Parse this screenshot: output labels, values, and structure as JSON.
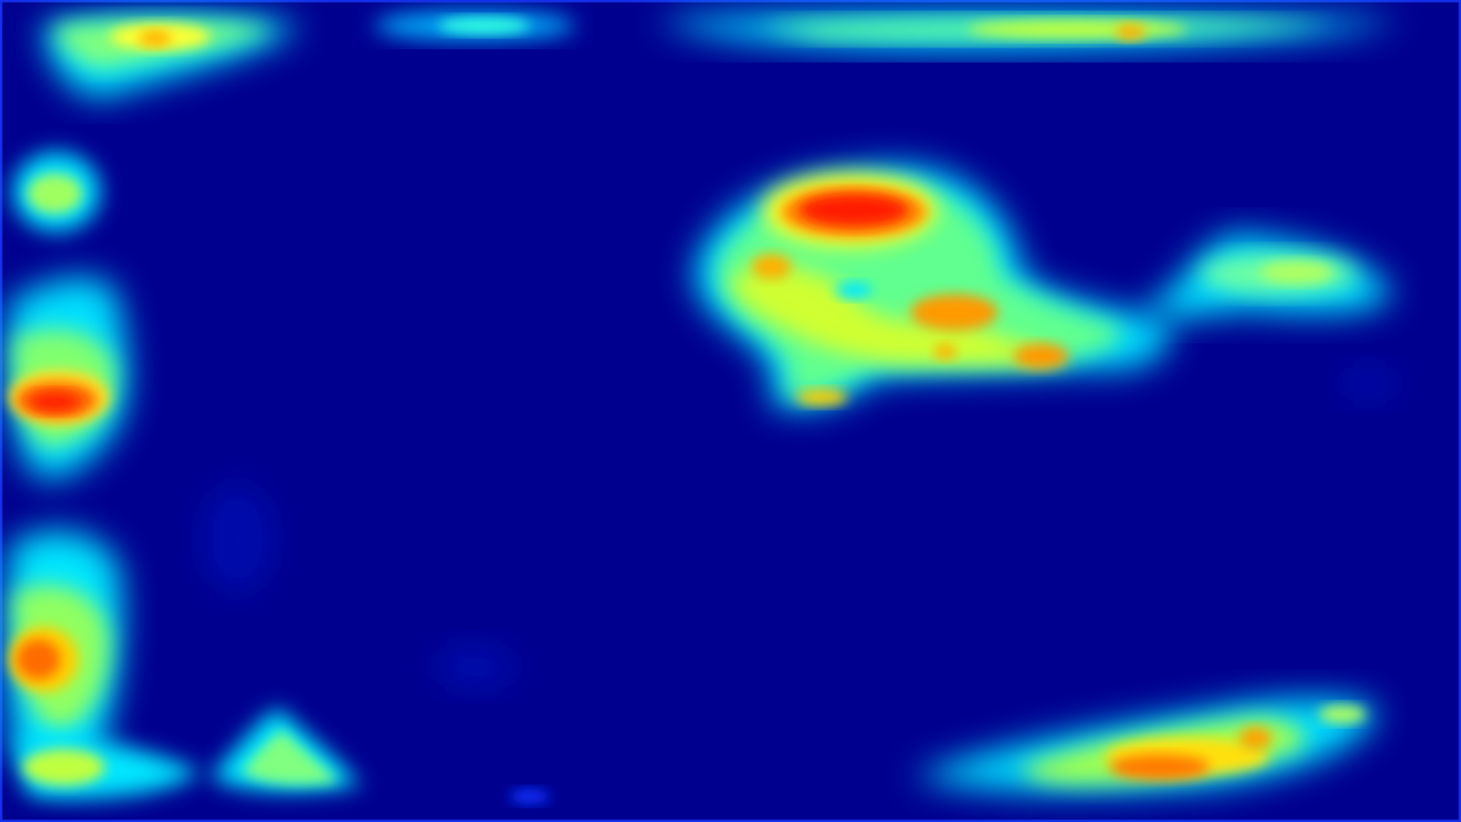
{
  "image": {
    "colormap": "jet",
    "background_color": "#00008f",
    "colors": {
      "low": "#00008f",
      "blue": "#0000ff",
      "cyan": "#00ffff",
      "green": "#7fff7f",
      "yellow": "#ffff00",
      "orange": "#ff7f00",
      "red": "#ff0000"
    },
    "hotspots": [
      {
        "name": "top-left-streak",
        "intensity": 0.72
      },
      {
        "name": "top-center-streak",
        "intensity": 0.35
      },
      {
        "name": "top-right-streak",
        "intensity": 0.6
      },
      {
        "name": "left-upper-blob",
        "intensity": 0.62
      },
      {
        "name": "left-middle-blob",
        "intensity": 0.92
      },
      {
        "name": "left-lower-blob",
        "intensity": 0.9
      },
      {
        "name": "bottom-left-corner",
        "intensity": 0.68
      },
      {
        "name": "bottom-left-spike",
        "intensity": 0.55
      },
      {
        "name": "center-right-cluster",
        "intensity": 0.96
      },
      {
        "name": "right-arm",
        "intensity": 0.58
      },
      {
        "name": "bottom-right-streak",
        "intensity": 0.92
      }
    ]
  }
}
